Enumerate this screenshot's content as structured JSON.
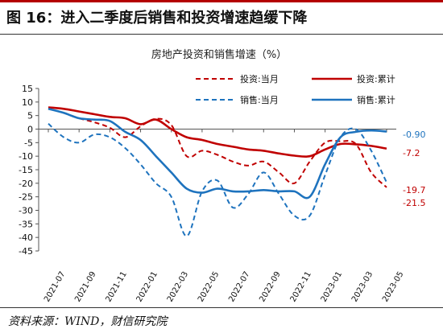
{
  "figure": {
    "headline": "图 16：进入二季度后销售和投资增速趋缓下降",
    "source": "资料来源：WIND，财信研究院"
  },
  "chart_data": {
    "type": "line",
    "title": "房地产投资和销售增速（%）",
    "xlabel": "",
    "ylabel": "",
    "ylim": [
      -45,
      15
    ],
    "yticks": [
      15,
      10,
      5,
      0,
      -5,
      -10,
      -15,
      -20,
      -25,
      -30,
      -35,
      -40,
      -45
    ],
    "x": [
      "2021-07",
      "2021-08",
      "2021-09",
      "2021-10",
      "2021-11",
      "2021-12",
      "2022-01",
      "2022-02",
      "2022-03",
      "2022-04",
      "2022-05",
      "2022-06",
      "2022-07",
      "2022-08",
      "2022-09",
      "2022-10",
      "2022-11",
      "2022-12",
      "2023-01",
      "2023-02",
      "2023-03",
      "2023-04",
      "2023-05"
    ],
    "x_tick_labels": [
      "2021-07",
      "2021-09",
      "2021-11",
      "2022-01",
      "2022-03",
      "2022-05",
      "2022-07",
      "2022-09",
      "2022-11",
      "2023-01",
      "2023-03",
      "2023-05"
    ],
    "grid": false,
    "legend_placement": "top-right",
    "series": [
      {
        "name": "投资:当月",
        "color": "#c00000",
        "style": "dashed",
        "values": [
          7.5,
          6.0,
          4.0,
          2.5,
          0.5,
          -3.0,
          1.0,
          3.8,
          1.5,
          -10.0,
          -8.0,
          -9.5,
          -12.0,
          -13.5,
          -12.0,
          -16.0,
          -20.0,
          -12.0,
          -5.0,
          -4.5,
          -5.5,
          -16.0,
          -21.5
        ]
      },
      {
        "name": "投资:累计",
        "color": "#c00000",
        "style": "solid",
        "values": [
          8.0,
          7.5,
          6.5,
          5.5,
          4.5,
          4.0,
          1.8,
          3.5,
          0.0,
          -3.0,
          -4.0,
          -5.5,
          -6.5,
          -7.5,
          -8.0,
          -9.0,
          -9.8,
          -10.0,
          -7.5,
          -5.5,
          -5.6,
          -6.2,
          -7.2
        ]
      },
      {
        "name": "销售:当月",
        "color": "#1e73be",
        "style": "dashed",
        "values": [
          2.0,
          -3.0,
          -5.0,
          -2.0,
          -3.0,
          -7.0,
          -13.0,
          -20.0,
          -25.0,
          -39.5,
          -23.0,
          -19.0,
          -29.0,
          -24.0,
          -16.0,
          -24.0,
          -32.0,
          -32.0,
          -17.0,
          -3.0,
          0.0,
          -8.0,
          -19.7
        ]
      },
      {
        "name": "销售:累计",
        "color": "#1e73be",
        "style": "solid",
        "values": [
          7.5,
          6.0,
          4.0,
          3.5,
          3.0,
          -1.0,
          -4.0,
          -10.0,
          -16.0,
          -22.0,
          -23.5,
          -22.0,
          -23.0,
          -23.0,
          -22.5,
          -23.0,
          -23.0,
          -25.0,
          -13.0,
          -3.0,
          -1.0,
          -0.5,
          -0.9
        ]
      }
    ],
    "end_labels": [
      {
        "text": "-0.90",
        "color": "#1e73be"
      },
      {
        "text": "-7.2",
        "color": "#c00000"
      },
      {
        "text": "-19.7",
        "color": "#c00000"
      },
      {
        "text": "-21.5",
        "color": "#c00000"
      }
    ]
  }
}
